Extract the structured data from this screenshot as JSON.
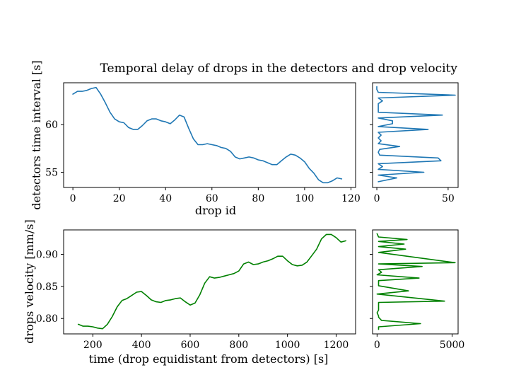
{
  "title": "Temporal delay of drops in the detectors and drop velocity",
  "colors": {
    "blue": "#1f77b4",
    "green": "#008000"
  },
  "chart_data": [
    {
      "name": "delay",
      "type": "line",
      "xlabel": "drop id",
      "ylabel": "detectors time interval [s]",
      "xlim": [
        -4,
        122
      ],
      "ylim": [
        53.4,
        64.4
      ],
      "xticks": [
        0,
        20,
        40,
        60,
        80,
        100,
        120
      ],
      "xtick_labels": [
        "0",
        "20",
        "40",
        "60",
        "80",
        "100",
        "120"
      ],
      "yticks": [
        55,
        60
      ],
      "ytick_labels": [
        "55",
        "60"
      ],
      "color": "#1f77b4",
      "x": [
        0,
        2,
        4,
        6,
        8,
        10,
        12,
        14,
        16,
        18,
        20,
        22,
        24,
        26,
        28,
        30,
        32,
        34,
        36,
        38,
        40,
        42,
        44,
        46,
        48,
        50,
        52,
        54,
        56,
        58,
        60,
        62,
        64,
        66,
        68,
        70,
        72,
        74,
        76,
        78,
        80,
        82,
        84,
        86,
        88,
        90,
        92,
        94,
        96,
        98,
        100,
        102,
        104,
        106,
        108,
        110,
        112,
        114,
        116
      ],
      "y": [
        63.2,
        63.5,
        63.5,
        63.6,
        63.8,
        63.9,
        63.2,
        62.3,
        61.3,
        60.6,
        60.3,
        60.2,
        59.7,
        59.5,
        59.5,
        59.9,
        60.4,
        60.6,
        60.6,
        60.4,
        60.3,
        60.1,
        60.5,
        61.0,
        60.8,
        59.6,
        58.5,
        57.9,
        57.9,
        58.0,
        57.9,
        57.8,
        57.6,
        57.5,
        57.2,
        56.6,
        56.4,
        56.5,
        56.6,
        56.5,
        56.3,
        56.2,
        56.0,
        55.8,
        55.8,
        56.2,
        56.6,
        56.9,
        56.8,
        56.5,
        56.1,
        55.4,
        54.9,
        54.2,
        53.9,
        53.9,
        54.1,
        54.4,
        54.3
      ]
    },
    {
      "name": "delay-histogram",
      "type": "line",
      "xlim": [
        -3,
        57
      ],
      "ylim": [
        53.4,
        64.4
      ],
      "xticks": [
        0,
        50
      ],
      "xtick_labels": [
        "0",
        "50"
      ],
      "yticks": [
        55,
        60
      ],
      "color": "#1f77b4",
      "x": [
        0,
        0,
        1,
        55,
        1,
        4,
        1,
        1,
        46,
        1,
        11,
        11,
        1,
        36,
        1,
        3,
        1,
        3,
        1,
        16,
        2,
        1,
        2,
        43,
        45,
        1,
        4,
        1,
        33,
        1,
        14,
        1
      ],
      "y": [
        64.0,
        63.7,
        63.4,
        63.1,
        62.8,
        62.5,
        62.2,
        61.3,
        61.0,
        60.7,
        60.4,
        60.1,
        59.8,
        59.5,
        59.2,
        58.9,
        58.6,
        58.3,
        58.0,
        57.7,
        57.4,
        57.1,
        56.8,
        56.5,
        56.2,
        55.9,
        55.6,
        55.3,
        55.0,
        54.7,
        54.4,
        54.0
      ]
    },
    {
      "name": "velocity",
      "type": "line",
      "xlabel": "time (drop equidistant from detectors) [s]",
      "ylabel": "drops velocity [mm/s]",
      "xlim": [
        80,
        1280
      ],
      "ylim": [
        0.776,
        0.938
      ],
      "xticks": [
        200,
        400,
        600,
        800,
        1000,
        1200
      ],
      "xtick_labels": [
        "200",
        "400",
        "600",
        "800",
        "1000",
        "1200"
      ],
      "yticks": [
        0.8,
        0.85,
        0.9
      ],
      "ytick_labels": [
        "0.80",
        "0.85",
        "0.90"
      ],
      "color": "#008000",
      "x": [
        140,
        160,
        180,
        200,
        220,
        240,
        260,
        280,
        300,
        320,
        340,
        360,
        380,
        400,
        420,
        440,
        460,
        480,
        500,
        520,
        540,
        560,
        580,
        600,
        620,
        640,
        660,
        680,
        700,
        720,
        740,
        760,
        780,
        800,
        820,
        840,
        860,
        880,
        900,
        920,
        940,
        960,
        980,
        1000,
        1020,
        1040,
        1060,
        1080,
        1100,
        1120,
        1140,
        1160,
        1180,
        1200,
        1220,
        1240
      ],
      "y": [
        0.791,
        0.788,
        0.788,
        0.787,
        0.785,
        0.784,
        0.791,
        0.803,
        0.818,
        0.828,
        0.831,
        0.836,
        0.841,
        0.842,
        0.836,
        0.829,
        0.826,
        0.825,
        0.828,
        0.829,
        0.831,
        0.832,
        0.826,
        0.821,
        0.824,
        0.837,
        0.855,
        0.865,
        0.863,
        0.864,
        0.866,
        0.868,
        0.87,
        0.874,
        0.885,
        0.888,
        0.884,
        0.885,
        0.888,
        0.89,
        0.893,
        0.897,
        0.897,
        0.89,
        0.884,
        0.882,
        0.883,
        0.888,
        0.898,
        0.908,
        0.924,
        0.931,
        0.931,
        0.926,
        0.919,
        0.921
      ]
    },
    {
      "name": "velocity-histogram",
      "type": "line",
      "xlim": [
        -300,
        5400
      ],
      "ylim": [
        0.776,
        0.938
      ],
      "xticks": [
        0,
        5000
      ],
      "xtick_labels": [
        "0",
        "5000"
      ],
      "yticks": [
        0.8,
        0.85,
        0.9
      ],
      "color": "#008000",
      "x": [
        0,
        100,
        2000,
        100,
        1800,
        100,
        1900,
        100,
        5200,
        100,
        3000,
        100,
        300,
        0,
        2800,
        100,
        100,
        2100,
        0,
        4500,
        100,
        100,
        100,
        0,
        100,
        100,
        300,
        2900,
        100,
        100
      ],
      "y": [
        0.932,
        0.927,
        0.923,
        0.92,
        0.916,
        0.912,
        0.908,
        0.903,
        0.887,
        0.885,
        0.881,
        0.876,
        0.872,
        0.868,
        0.863,
        0.859,
        0.851,
        0.843,
        0.838,
        0.827,
        0.825,
        0.819,
        0.813,
        0.809,
        0.804,
        0.802,
        0.797,
        0.792,
        0.787,
        0.783
      ]
    }
  ]
}
